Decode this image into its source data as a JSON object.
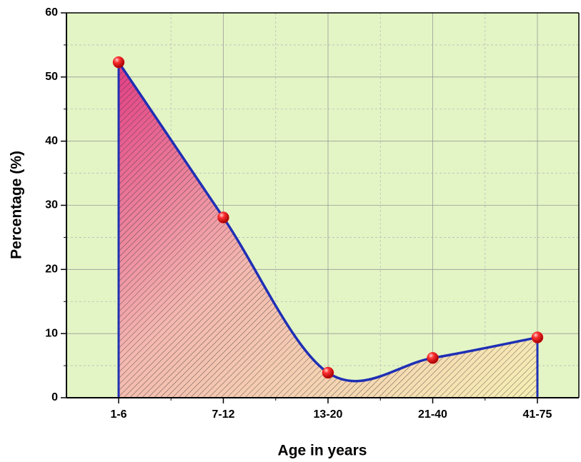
{
  "chart_data": {
    "type": "area",
    "x_label": "Age in years",
    "y_label": "Percentage (%)",
    "categories": [
      "1-6",
      "7-12",
      "13-20",
      "21-40",
      "41-75"
    ],
    "values": [
      52.3,
      28.1,
      3.9,
      6.2,
      9.4
    ],
    "color": "#1f2fb5",
    "marker_color": "#e8141c",
    "ylim": [
      0,
      60
    ],
    "yticks": [
      0,
      10,
      20,
      30,
      40,
      50,
      60
    ],
    "grid": true
  }
}
